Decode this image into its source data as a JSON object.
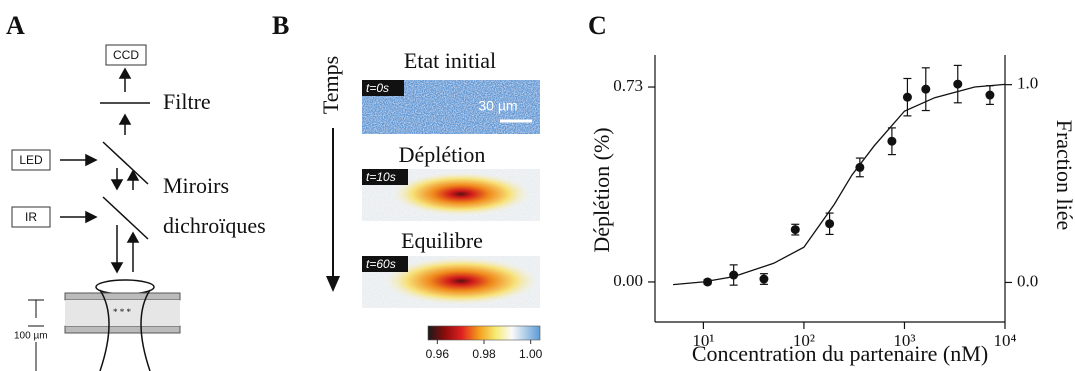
{
  "panel_a": {
    "label": "A",
    "boxes": [
      "CCD",
      "LED",
      "IR"
    ],
    "filter": "Filtre",
    "mirrors": [
      "Miroirs",
      "dichroïques"
    ],
    "scale": "100 µm"
  },
  "panel_b": {
    "label": "B",
    "axis": "Temps",
    "titles": [
      "Etat initial",
      "Déplétion",
      "Equilibre"
    ],
    "times": [
      "t=0s",
      "t=10s",
      "t=60s"
    ],
    "scale": "30 µm",
    "colorbar": {
      "range": [
        0.956,
        1.004
      ],
      "ticks": [
        0.96,
        0.98,
        {
          "value": 1,
          "label": "1.00"
        }
      ]
    }
  },
  "chart_data": {
    "type": "scatter",
    "panel_label": "C",
    "x_label": "Concentration du partenaire (nM)",
    "y_label": "Déplétion (%)",
    "y2_label": "Fraction liée",
    "log_x": true,
    "xlim": [
      3.3,
      10000
    ],
    "xticks": [
      {
        "value": 10,
        "label": "10¹"
      },
      {
        "value": 100,
        "label": "10²"
      },
      {
        "value": 1000,
        "label": "10³"
      },
      {
        "value": 10000,
        "label": "10⁴"
      }
    ],
    "ylim": [
      -0.15,
      0.85
    ],
    "yticks": [
      {
        "value": 0,
        "label": "0.00"
      },
      0.73
    ],
    "y2lim": [
      -0.2,
      1.15
    ],
    "y2ticks": [
      {
        "value": 0,
        "label": "0.0"
      },
      {
        "value": 1,
        "label": "1.0"
      }
    ],
    "series": [
      {
        "type": "scatter",
        "color": "#111111",
        "x": [
          11,
          20,
          40,
          82,
          180,
          360,
          750,
          1070,
          1630,
          3390,
          7080
        ],
        "values": [
          0.0,
          0.026,
          0.011,
          0.196,
          0.218,
          0.429,
          0.527,
          0.692,
          0.722,
          0.741,
          0.7
        ],
        "errors": [
          0.008,
          0.038,
          0.02,
          0.02,
          0.04,
          0.035,
          0.05,
          0.07,
          0.08,
          0.07,
          0.035
        ]
      },
      {
        "type": "line",
        "color": "#111111",
        "x": [
          5,
          10,
          20,
          50,
          100,
          200,
          300,
          500,
          1000,
          2000,
          5000,
          10000
        ],
        "values": [
          -0.01,
          0.0,
          0.02,
          0.07,
          0.13,
          0.29,
          0.4,
          0.51,
          0.64,
          0.69,
          0.73,
          0.74
        ]
      }
    ]
  }
}
